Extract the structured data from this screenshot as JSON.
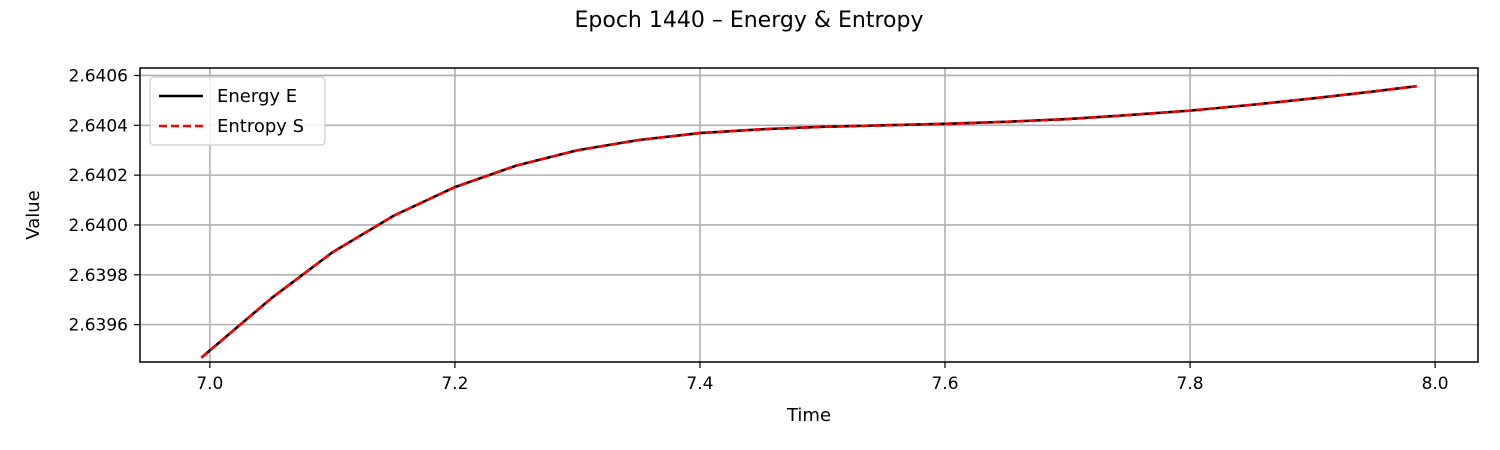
{
  "chart_data": {
    "type": "line",
    "title": "Epoch 1440 – Energy & Entropy",
    "xlabel": "Time",
    "ylabel": "Value",
    "xlim": [
      6.943,
      8.035
    ],
    "ylim": [
      2.63945,
      2.64063
    ],
    "xticks": [
      7.0,
      7.2,
      7.4,
      7.6,
      7.8,
      8.0
    ],
    "xtick_labels": [
      "7.0",
      "7.2",
      "7.4",
      "7.6",
      "7.8",
      "8.0"
    ],
    "yticks": [
      2.6396,
      2.6398,
      2.64,
      2.6402,
      2.6404,
      2.6406
    ],
    "ytick_labels": [
      "2.6396",
      "2.6398",
      "2.6400",
      "2.6402",
      "2.6404",
      "2.6406"
    ],
    "grid": true,
    "legend_position": "upper-left",
    "x": [
      6.993,
      7.05,
      7.1,
      7.15,
      7.2,
      7.25,
      7.3,
      7.35,
      7.4,
      7.45,
      7.5,
      7.55,
      7.6,
      7.65,
      7.7,
      7.75,
      7.8,
      7.85,
      7.9,
      7.95,
      7.985
    ],
    "series": [
      {
        "name": "Energy E",
        "color": "#000000",
        "style": "solid",
        "values": [
          2.639467,
          2.639705,
          2.63989,
          2.640037,
          2.640152,
          2.640238,
          2.6403,
          2.640341,
          2.640369,
          2.640384,
          2.640394,
          2.6404,
          2.640406,
          2.640414,
          2.640425,
          2.640441,
          2.640459,
          2.640482,
          2.640508,
          2.640536,
          2.640557
        ]
      },
      {
        "name": "Entropy S",
        "color": "#ff0000",
        "style": "dashed",
        "values": [
          2.639467,
          2.639705,
          2.63989,
          2.640037,
          2.640152,
          2.640238,
          2.6403,
          2.640341,
          2.640369,
          2.640384,
          2.640394,
          2.6404,
          2.640406,
          2.640414,
          2.640425,
          2.640441,
          2.640459,
          2.640482,
          2.640508,
          2.640536,
          2.640557
        ]
      }
    ]
  }
}
